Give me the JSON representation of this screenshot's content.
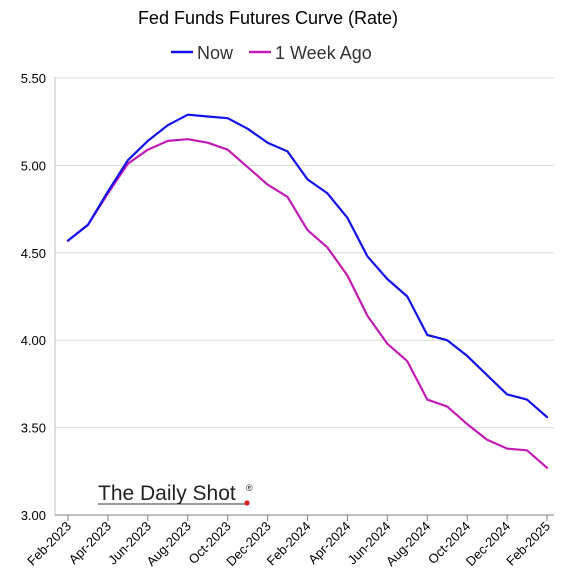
{
  "chart_data": {
    "type": "line",
    "title": "Fed Funds Futures Curve (Rate)",
    "xlabel": "",
    "ylabel": "",
    "ylim": [
      3.0,
      5.5
    ],
    "yticks": [
      "3.00",
      "3.50",
      "4.00",
      "4.50",
      "5.00",
      "5.50"
    ],
    "grid": true,
    "legend_position": "top",
    "x_tick_labels": [
      "Feb-2023",
      "Apr-2023",
      "Jun-2023",
      "Aug-2023",
      "Oct-2023",
      "Dec-2023",
      "Feb-2024",
      "Apr-2024",
      "Jun-2024",
      "Aug-2024",
      "Oct-2024",
      "Dec-2024",
      "Feb-2025"
    ],
    "x": [
      "Feb-2023",
      "Mar-2023",
      "Apr-2023",
      "May-2023",
      "Jun-2023",
      "Jul-2023",
      "Aug-2023",
      "Sep-2023",
      "Oct-2023",
      "Nov-2023",
      "Dec-2023",
      "Jan-2024",
      "Feb-2024",
      "Mar-2024",
      "Apr-2024",
      "May-2024",
      "Jun-2024",
      "Jul-2024",
      "Aug-2024",
      "Sep-2024",
      "Oct-2024",
      "Nov-2024",
      "Dec-2024",
      "Jan-2025",
      "Feb-2025"
    ],
    "series": [
      {
        "name": "Now",
        "color": "#1212e8",
        "values": [
          4.57,
          4.66,
          4.85,
          5.03,
          5.14,
          5.23,
          5.29,
          5.28,
          5.27,
          5.21,
          5.13,
          5.08,
          4.92,
          4.84,
          4.7,
          4.48,
          4.35,
          4.25,
          4.03,
          4.0,
          3.91,
          3.8,
          3.69,
          3.66,
          3.56
        ]
      },
      {
        "name": "1 Week Ago",
        "color": "#c21bb4",
        "values": [
          4.57,
          4.66,
          4.84,
          5.01,
          5.09,
          5.14,
          5.15,
          5.13,
          5.09,
          4.99,
          4.89,
          4.82,
          4.63,
          4.53,
          4.37,
          4.14,
          3.98,
          3.88,
          3.66,
          3.62,
          3.52,
          3.43,
          3.38,
          3.37,
          3.27
        ]
      }
    ],
    "annotations": [
      {
        "text": "The Daily Shot",
        "mark": "®",
        "type": "watermark"
      }
    ]
  }
}
